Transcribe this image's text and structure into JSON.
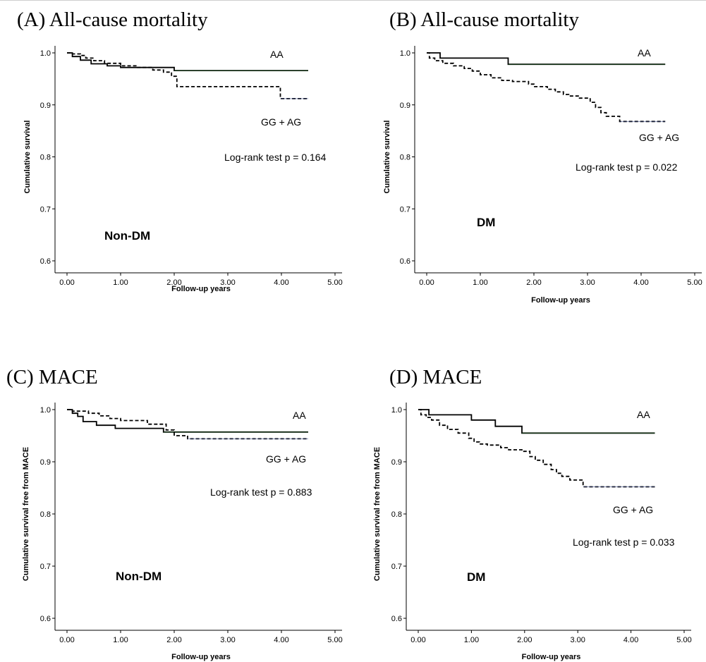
{
  "chart_data": [
    {
      "type": "line",
      "title": "(A) All-cause mortality",
      "xlabel": "Follow-up years",
      "ylabel": "Cumulative survival",
      "xlim": [
        0,
        5
      ],
      "ylim": [
        0.6,
        1.0
      ],
      "xticks": [
        "0.00",
        "1.00",
        "2.00",
        "3.00",
        "4.00",
        "5.00"
      ],
      "yticks": [
        "0.6",
        "0.7",
        "0.8",
        "0.9",
        "1.0"
      ],
      "group_label": "Non-DM",
      "pvalue_text": "Log-rank test p = 0.164",
      "grid": false,
      "series": [
        {
          "name": "AA",
          "style": "solid",
          "x": [
            0,
            0.1,
            0.25,
            0.45,
            0.75,
            1.0,
            2.0,
            4.5
          ],
          "y": [
            1.0,
            0.993,
            0.986,
            0.979,
            0.975,
            0.972,
            0.966,
            0.966
          ]
        },
        {
          "name": "GG + AG",
          "style": "dashed",
          "x": [
            0,
            0.1,
            0.25,
            0.35,
            0.5,
            0.7,
            1.0,
            1.3,
            1.6,
            1.8,
            1.95,
            2.05,
            3.98,
            4.5
          ],
          "y": [
            1.0,
            0.998,
            0.995,
            0.99,
            0.985,
            0.98,
            0.975,
            0.972,
            0.967,
            0.963,
            0.955,
            0.935,
            0.912,
            0.912
          ]
        }
      ]
    },
    {
      "type": "line",
      "title": "(B) All-cause mortality",
      "xlabel": "Follow-up years",
      "ylabel": "Cumulative survival",
      "xlim": [
        0,
        5
      ],
      "ylim": [
        0.6,
        1.0
      ],
      "xticks": [
        "0.00",
        "1.00",
        "2.00",
        "3.00",
        "4.00",
        "5.00"
      ],
      "yticks": [
        "0.6",
        "0.7",
        "0.8",
        "0.9",
        "1.0"
      ],
      "group_label": "DM",
      "pvalue_text": "Log-rank test p = 0.022",
      "grid": false,
      "series": [
        {
          "name": "AA",
          "style": "solid",
          "x": [
            0,
            0.25,
            1.52,
            4.45
          ],
          "y": [
            1.0,
            0.99,
            0.978,
            0.978
          ]
        },
        {
          "name": "GG + AG",
          "style": "dashed",
          "x": [
            0,
            0.05,
            0.15,
            0.3,
            0.5,
            0.7,
            0.85,
            1.0,
            1.2,
            1.4,
            1.6,
            1.9,
            2.0,
            2.25,
            2.4,
            2.55,
            2.65,
            2.85,
            3.05,
            3.15,
            3.25,
            3.35,
            3.6,
            4.45
          ],
          "y": [
            1.0,
            0.99,
            0.985,
            0.98,
            0.975,
            0.97,
            0.965,
            0.958,
            0.952,
            0.947,
            0.945,
            0.94,
            0.935,
            0.93,
            0.925,
            0.92,
            0.917,
            0.913,
            0.905,
            0.895,
            0.885,
            0.878,
            0.868,
            0.868
          ]
        }
      ]
    },
    {
      "type": "line",
      "title": "(C) MACE",
      "xlabel": "Follow-up years",
      "ylabel": "Cumulative survival free from MACE",
      "xlim": [
        0,
        5
      ],
      "ylim": [
        0.6,
        1.0
      ],
      "xticks": [
        "0.00",
        "1.00",
        "2.00",
        "3.00",
        "4.00",
        "5.00"
      ],
      "yticks": [
        "0.6",
        "0.7",
        "0.8",
        "0.9",
        "1.0"
      ],
      "group_label": "Non-DM",
      "pvalue_text": "Log-rank test p = 0.883",
      "grid": false,
      "series": [
        {
          "name": "AA",
          "style": "solid",
          "x": [
            0,
            0.1,
            0.2,
            0.3,
            0.55,
            0.9,
            1.8,
            4.5
          ],
          "y": [
            1.0,
            0.993,
            0.987,
            0.977,
            0.97,
            0.964,
            0.957,
            0.957
          ]
        },
        {
          "name": "GG + AG",
          "style": "dashed",
          "x": [
            0,
            0.1,
            0.4,
            0.6,
            0.8,
            1.0,
            1.5,
            1.85,
            2.0,
            2.25,
            4.5
          ],
          "y": [
            1.0,
            0.997,
            0.993,
            0.988,
            0.983,
            0.979,
            0.972,
            0.961,
            0.95,
            0.944,
            0.944
          ]
        }
      ]
    },
    {
      "type": "line",
      "title": "(D) MACE",
      "xlabel": "Follow-up years",
      "ylabel": "Cumulative survival free from MACE",
      "xlim": [
        0,
        5
      ],
      "ylim": [
        0.6,
        1.0
      ],
      "xticks": [
        "0.00",
        "1.00",
        "2.00",
        "3.00",
        "4.00",
        "5.00"
      ],
      "yticks": [
        "0.6",
        "0.7",
        "0.8",
        "0.9",
        "1.0"
      ],
      "group_label": "DM",
      "pvalue_text": "Log-rank test p = 0.033",
      "grid": false,
      "series": [
        {
          "name": "AA",
          "style": "solid",
          "x": [
            0,
            0.2,
            1.0,
            1.45,
            1.95,
            4.45
          ],
          "y": [
            1.0,
            0.99,
            0.98,
            0.968,
            0.955,
            0.955
          ]
        },
        {
          "name": "GG + AG",
          "style": "dashed",
          "x": [
            0,
            0.05,
            0.15,
            0.25,
            0.4,
            0.55,
            0.75,
            0.95,
            1.05,
            1.15,
            1.3,
            1.55,
            1.7,
            1.95,
            2.1,
            2.2,
            2.35,
            2.5,
            2.6,
            2.7,
            2.85,
            3.1,
            4.45
          ],
          "y": [
            1.0,
            0.99,
            0.985,
            0.98,
            0.97,
            0.962,
            0.955,
            0.945,
            0.938,
            0.934,
            0.932,
            0.927,
            0.923,
            0.92,
            0.91,
            0.903,
            0.895,
            0.885,
            0.878,
            0.872,
            0.865,
            0.852,
            0.852
          ]
        }
      ]
    }
  ]
}
